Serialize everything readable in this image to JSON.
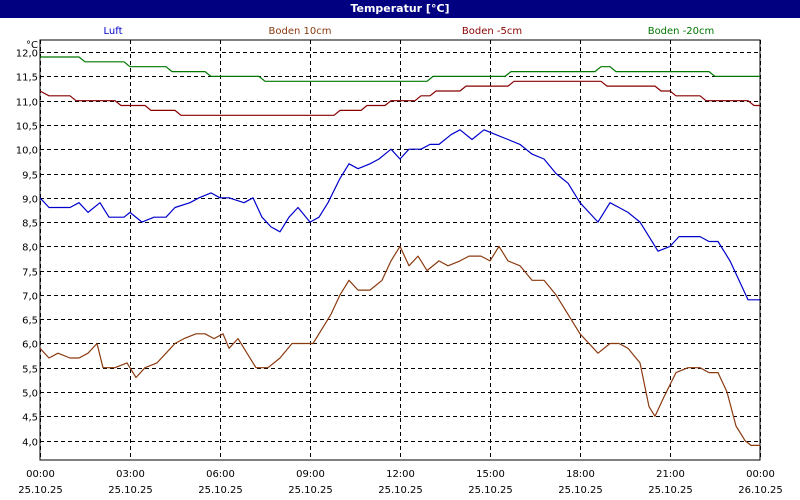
{
  "chart_data": {
    "type": "line",
    "title": "Temperatur [°C]",
    "ylabel": "°C",
    "xlabel": "",
    "ylim": [
      3.6,
      12.25
    ],
    "grid": true,
    "legend_position": "top",
    "y_ticks": [
      "4,0",
      "4,5",
      "5,0",
      "5,5",
      "6,0",
      "6,5",
      "7,0",
      "7,5",
      "8,0",
      "8,5",
      "9,0",
      "9,5",
      "10,0",
      "10,5",
      "11,0",
      "11,5",
      "12,0"
    ],
    "x_ticks": [
      {
        "time": "00:00",
        "date": "25.10.25"
      },
      {
        "time": "03:00",
        "date": "25.10.25"
      },
      {
        "time": "06:00",
        "date": "25.10.25"
      },
      {
        "time": "09:00",
        "date": "25.10.25"
      },
      {
        "time": "12:00",
        "date": "25.10.25"
      },
      {
        "time": "15:00",
        "date": "25.10.25"
      },
      {
        "time": "18:00",
        "date": "25.10.25"
      },
      {
        "time": "21:00",
        "date": "25.10.25"
      },
      {
        "time": "00:00",
        "date": "26.10.25"
      }
    ],
    "x_unit": "hours since 00:00 25.10.25",
    "series": [
      {
        "name": "Luft",
        "color": "#0000cc",
        "points": [
          [
            0,
            9.0
          ],
          [
            0.3,
            8.8
          ],
          [
            1.0,
            8.8
          ],
          [
            1.3,
            8.9
          ],
          [
            1.6,
            8.7
          ],
          [
            2.0,
            8.9
          ],
          [
            2.3,
            8.6
          ],
          [
            2.8,
            8.6
          ],
          [
            3.0,
            8.7
          ],
          [
            3.4,
            8.5
          ],
          [
            3.8,
            8.6
          ],
          [
            4.2,
            8.6
          ],
          [
            4.5,
            8.8
          ],
          [
            5.0,
            8.9
          ],
          [
            5.3,
            9.0
          ],
          [
            5.7,
            9.1
          ],
          [
            6.0,
            9.0
          ],
          [
            6.3,
            9.0
          ],
          [
            6.8,
            8.9
          ],
          [
            7.1,
            9.0
          ],
          [
            7.4,
            8.6
          ],
          [
            7.7,
            8.4
          ],
          [
            8.0,
            8.3
          ],
          [
            8.3,
            8.6
          ],
          [
            8.6,
            8.8
          ],
          [
            9.0,
            8.5
          ],
          [
            9.3,
            8.6
          ],
          [
            9.6,
            8.9
          ],
          [
            10.0,
            9.4
          ],
          [
            10.3,
            9.7
          ],
          [
            10.6,
            9.6
          ],
          [
            11.0,
            9.7
          ],
          [
            11.3,
            9.8
          ],
          [
            11.7,
            10.0
          ],
          [
            12.0,
            9.8
          ],
          [
            12.3,
            10.0
          ],
          [
            12.7,
            10.0
          ],
          [
            13.0,
            10.1
          ],
          [
            13.3,
            10.1
          ],
          [
            13.7,
            10.3
          ],
          [
            14.0,
            10.4
          ],
          [
            14.4,
            10.2
          ],
          [
            14.8,
            10.4
          ],
          [
            15.2,
            10.3
          ],
          [
            15.6,
            10.2
          ],
          [
            16.0,
            10.1
          ],
          [
            16.4,
            9.9
          ],
          [
            16.8,
            9.8
          ],
          [
            17.2,
            9.5
          ],
          [
            17.6,
            9.3
          ],
          [
            18.0,
            8.9
          ],
          [
            18.3,
            8.7
          ],
          [
            18.6,
            8.5
          ],
          [
            19.0,
            8.9
          ],
          [
            19.3,
            8.8
          ],
          [
            19.6,
            8.7
          ],
          [
            20.0,
            8.5
          ],
          [
            20.3,
            8.2
          ],
          [
            20.6,
            7.9
          ],
          [
            21.0,
            8.0
          ],
          [
            21.3,
            8.2
          ],
          [
            21.6,
            8.2
          ],
          [
            22.0,
            8.2
          ],
          [
            22.3,
            8.1
          ],
          [
            22.6,
            8.1
          ],
          [
            23.0,
            7.7
          ],
          [
            23.3,
            7.3
          ],
          [
            23.6,
            6.9
          ],
          [
            24.0,
            6.9
          ]
        ]
      },
      {
        "name": "Boden 10cm",
        "color": "#8b3a0f",
        "points": [
          [
            0,
            5.9
          ],
          [
            0.3,
            5.7
          ],
          [
            0.6,
            5.8
          ],
          [
            1.0,
            5.7
          ],
          [
            1.3,
            5.7
          ],
          [
            1.6,
            5.8
          ],
          [
            1.9,
            6.0
          ],
          [
            2.1,
            5.5
          ],
          [
            2.5,
            5.5
          ],
          [
            2.9,
            5.6
          ],
          [
            3.2,
            5.3
          ],
          [
            3.5,
            5.5
          ],
          [
            3.9,
            5.6
          ],
          [
            4.2,
            5.8
          ],
          [
            4.5,
            6.0
          ],
          [
            4.8,
            6.1
          ],
          [
            5.2,
            6.2
          ],
          [
            5.5,
            6.2
          ],
          [
            5.8,
            6.1
          ],
          [
            6.1,
            6.2
          ],
          [
            6.3,
            5.9
          ],
          [
            6.6,
            6.1
          ],
          [
            6.9,
            5.8
          ],
          [
            7.2,
            5.5
          ],
          [
            7.6,
            5.5
          ],
          [
            8.0,
            5.7
          ],
          [
            8.4,
            6.0
          ],
          [
            8.8,
            6.0
          ],
          [
            9.1,
            6.0
          ],
          [
            9.4,
            6.3
          ],
          [
            9.7,
            6.6
          ],
          [
            10.0,
            7.0
          ],
          [
            10.3,
            7.3
          ],
          [
            10.6,
            7.1
          ],
          [
            11.0,
            7.1
          ],
          [
            11.4,
            7.3
          ],
          [
            11.7,
            7.7
          ],
          [
            12.0,
            8.0
          ],
          [
            12.3,
            7.6
          ],
          [
            12.6,
            7.8
          ],
          [
            12.9,
            7.5
          ],
          [
            13.3,
            7.7
          ],
          [
            13.6,
            7.6
          ],
          [
            14.0,
            7.7
          ],
          [
            14.3,
            7.8
          ],
          [
            14.7,
            7.8
          ],
          [
            15.0,
            7.7
          ],
          [
            15.3,
            8.0
          ],
          [
            15.6,
            7.7
          ],
          [
            16.0,
            7.6
          ],
          [
            16.4,
            7.3
          ],
          [
            16.8,
            7.3
          ],
          [
            17.2,
            7.0
          ],
          [
            17.6,
            6.6
          ],
          [
            18.0,
            6.2
          ],
          [
            18.3,
            6.0
          ],
          [
            18.6,
            5.8
          ],
          [
            19.0,
            6.0
          ],
          [
            19.3,
            6.0
          ],
          [
            19.6,
            5.9
          ],
          [
            20.0,
            5.6
          ],
          [
            20.3,
            4.7
          ],
          [
            20.5,
            4.5
          ],
          [
            20.8,
            4.9
          ],
          [
            21.2,
            5.4
          ],
          [
            21.6,
            5.5
          ],
          [
            22.0,
            5.5
          ],
          [
            22.3,
            5.4
          ],
          [
            22.6,
            5.4
          ],
          [
            22.9,
            5.0
          ],
          [
            23.2,
            4.3
          ],
          [
            23.5,
            4.0
          ],
          [
            23.7,
            3.9
          ],
          [
            24.0,
            3.9
          ]
        ]
      },
      {
        "name": "Boden -5cm",
        "color": "#880000",
        "points": [
          [
            0,
            11.2
          ],
          [
            0.3,
            11.1
          ],
          [
            1.0,
            11.1
          ],
          [
            1.2,
            11.0
          ],
          [
            2.5,
            11.0
          ],
          [
            2.7,
            10.9
          ],
          [
            3.5,
            10.9
          ],
          [
            3.7,
            10.8
          ],
          [
            4.5,
            10.8
          ],
          [
            4.7,
            10.7
          ],
          [
            9.8,
            10.7
          ],
          [
            10.0,
            10.8
          ],
          [
            10.7,
            10.8
          ],
          [
            10.9,
            10.9
          ],
          [
            11.5,
            10.9
          ],
          [
            11.7,
            11.0
          ],
          [
            12.5,
            11.0
          ],
          [
            12.7,
            11.1
          ],
          [
            13.0,
            11.1
          ],
          [
            13.2,
            11.2
          ],
          [
            14.0,
            11.2
          ],
          [
            14.2,
            11.3
          ],
          [
            15.6,
            11.3
          ],
          [
            15.8,
            11.4
          ],
          [
            18.7,
            11.4
          ],
          [
            18.9,
            11.3
          ],
          [
            20.5,
            11.3
          ],
          [
            20.7,
            11.2
          ],
          [
            21.0,
            11.2
          ],
          [
            21.2,
            11.1
          ],
          [
            22.0,
            11.1
          ],
          [
            22.2,
            11.0
          ],
          [
            23.6,
            11.0
          ],
          [
            23.8,
            10.9
          ],
          [
            24.0,
            10.9
          ]
        ]
      },
      {
        "name": "Boden -20cm",
        "color": "#007700",
        "points": [
          [
            0,
            11.9
          ],
          [
            1.3,
            11.9
          ],
          [
            1.5,
            11.8
          ],
          [
            2.8,
            11.8
          ],
          [
            3.0,
            11.7
          ],
          [
            4.2,
            11.7
          ],
          [
            4.4,
            11.6
          ],
          [
            5.5,
            11.6
          ],
          [
            5.7,
            11.5
          ],
          [
            7.3,
            11.5
          ],
          [
            7.5,
            11.4
          ],
          [
            12.9,
            11.4
          ],
          [
            13.1,
            11.5
          ],
          [
            15.5,
            11.5
          ],
          [
            15.7,
            11.6
          ],
          [
            18.5,
            11.6
          ],
          [
            18.7,
            11.7
          ],
          [
            19.0,
            11.7
          ],
          [
            19.2,
            11.6
          ],
          [
            22.3,
            11.6
          ],
          [
            22.5,
            11.5
          ],
          [
            24.0,
            11.5
          ]
        ]
      }
    ]
  }
}
